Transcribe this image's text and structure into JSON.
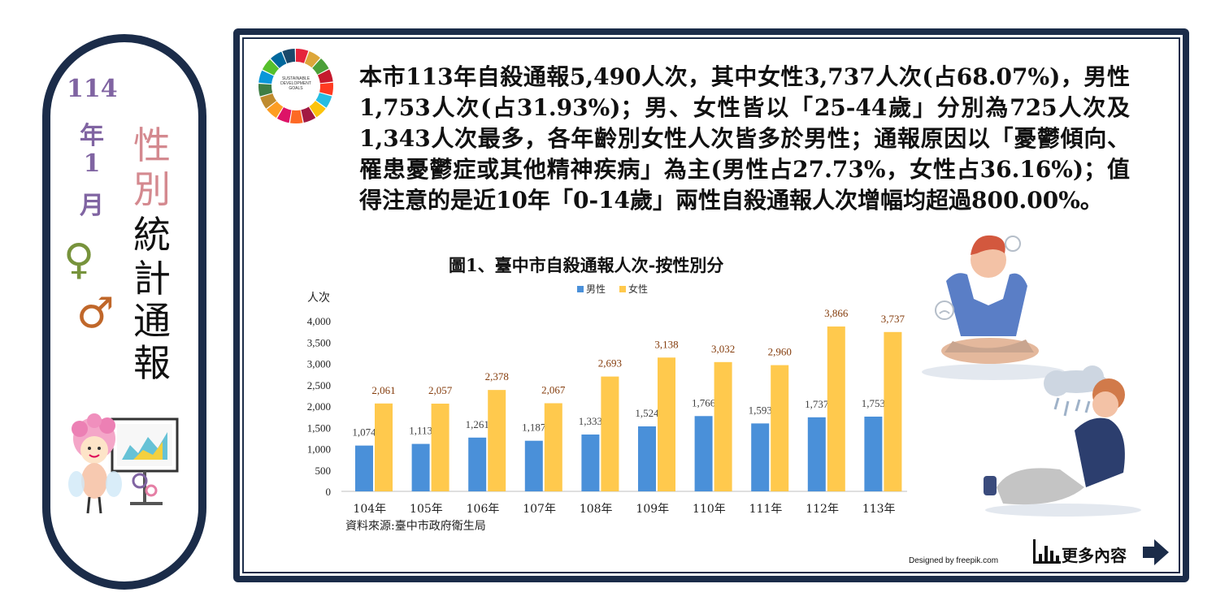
{
  "sidebar": {
    "year": "114",
    "year_unit": "年",
    "month": "1",
    "month_unit": "月",
    "title_chars": [
      "性",
      "別",
      "統",
      "計",
      "通",
      "報"
    ],
    "female_symbol": "♀",
    "male_symbol": "♂",
    "mascot": "fairy-mascot-with-chart"
  },
  "paragraph": "本市113年自殺通報5,490人次，其中女性3,737人次(占68.07%)，男性1,753人次(占31.93%)；男、女性皆以「25-44歲」分別為725人次及1,343人次最多，各年齡別女性人次皆多於男性；通報原因以「憂鬱傾向、罹患憂鬱症或其他精神疾病」為主(男性占27.73%，女性占36.16%)；值得注意的是近10年「0-14歲」兩性自殺通報人次增幅均超過800.00%。",
  "sdg_logo_text": "SUSTAINABLE DEVELOPMENT GOALS",
  "chart_data": {
    "type": "bar",
    "title": "圖1、臺中市自殺通報人次-按性別分",
    "ylabel": "人次",
    "xlabel": "",
    "categories": [
      "104年",
      "105年",
      "106年",
      "107年",
      "108年",
      "109年",
      "110年",
      "111年",
      "112年",
      "113年"
    ],
    "series": [
      {
        "name": "男性",
        "color": "#4a90d9",
        "values": [
          1074,
          1113,
          1261,
          1187,
          1333,
          1524,
          1766,
          1593,
          1737,
          1753
        ]
      },
      {
        "name": "女性",
        "color": "#ffc94d",
        "values": [
          2061,
          2057,
          2378,
          2067,
          2693,
          3138,
          3032,
          2960,
          3866,
          3737
        ]
      }
    ],
    "ylim": [
      0,
      4000
    ],
    "yticks": [
      0,
      500,
      1000,
      1500,
      2000,
      2500,
      3000,
      3500,
      4000
    ],
    "ytick_labels": [
      "0",
      "500",
      "1,000",
      "1,500",
      "2,000",
      "2,500",
      "3,000",
      "3,500",
      "4,000"
    ],
    "data_labels": {
      "男性": [
        "1,074",
        "1,113",
        "1,261",
        "1,187",
        "1,333",
        "1,524",
        "1,766",
        "1,593",
        "1,737",
        "1,753"
      ],
      "女性": [
        "2,061",
        "2,057",
        "2,378",
        "2,067",
        "2,693",
        "3,138",
        "3,032",
        "2,960",
        "3,866",
        "3,737"
      ]
    },
    "legend_position": "top-center",
    "grid": false
  },
  "source": "資料來源:臺中市政府衛生局",
  "more_button": {
    "label": "更多內容",
    "icon": "bar-chart-icon",
    "arrow": "arrow-right-icon"
  },
  "credit": "Designed by freepik.com",
  "colors": {
    "frame": "#1b2c49",
    "date": "#8064a2",
    "title_pink": "#d4898f",
    "female_sym": "#77933c",
    "male_sym": "#c0672a",
    "data_label": "#843c0c"
  }
}
